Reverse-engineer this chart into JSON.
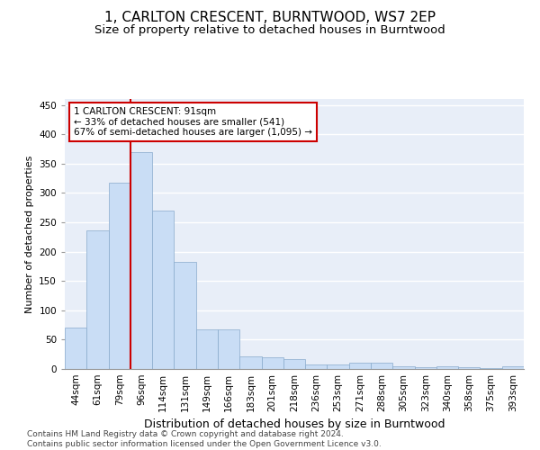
{
  "title": "1, CARLTON CRESCENT, BURNTWOOD, WS7 2EP",
  "subtitle": "Size of property relative to detached houses in Burntwood",
  "xlabel": "Distribution of detached houses by size in Burntwood",
  "ylabel": "Number of detached properties",
  "categories": [
    "44sqm",
    "61sqm",
    "79sqm",
    "96sqm",
    "114sqm",
    "131sqm",
    "149sqm",
    "166sqm",
    "183sqm",
    "201sqm",
    "218sqm",
    "236sqm",
    "253sqm",
    "271sqm",
    "288sqm",
    "305sqm",
    "323sqm",
    "340sqm",
    "358sqm",
    "375sqm",
    "393sqm"
  ],
  "values": [
    70,
    236,
    318,
    370,
    270,
    183,
    67,
    68,
    22,
    20,
    17,
    8,
    7,
    10,
    10,
    4,
    3,
    4,
    3,
    2,
    4
  ],
  "bar_color": "#c9ddf5",
  "bar_edge_color": "#88aacc",
  "bg_color": "#e8eef8",
  "grid_color": "#ffffff",
  "vline_x": 2.5,
  "vline_color": "#cc0000",
  "annotation_text": "1 CARLTON CRESCENT: 91sqm\n← 33% of detached houses are smaller (541)\n67% of semi-detached houses are larger (1,095) →",
  "annotation_box_color": "#cc0000",
  "ylim": [
    0,
    460
  ],
  "yticks": [
    0,
    50,
    100,
    150,
    200,
    250,
    300,
    350,
    400,
    450
  ],
  "footer": "Contains HM Land Registry data © Crown copyright and database right 2024.\nContains public sector information licensed under the Open Government Licence v3.0.",
  "title_fontsize": 11,
  "subtitle_fontsize": 9.5,
  "xlabel_fontsize": 9,
  "ylabel_fontsize": 8,
  "tick_fontsize": 7.5,
  "annotation_fontsize": 7.5,
  "footer_fontsize": 6.5
}
